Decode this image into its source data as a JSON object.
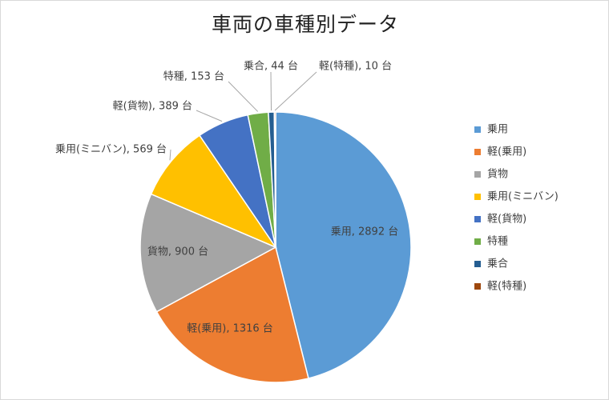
{
  "chart_data": {
    "type": "pie",
    "title": "車両の車種別データ",
    "unit": "台",
    "categories": [
      "乗用",
      "軽(乗用)",
      "貨物",
      "乗用(ミニバン)",
      "軽(貨物)",
      "特種",
      "乗合",
      "軽(特種)"
    ],
    "values": [
      2892,
      1316,
      900,
      569,
      389,
      153,
      44,
      10
    ],
    "colors": [
      "#5B9BD5",
      "#ED7D31",
      "#A5A5A5",
      "#FFC000",
      "#4472C4",
      "#70AD47",
      "#255E91",
      "#9E480E"
    ],
    "data_labels": [
      "乗用, 2892 台",
      "軽(乗用), 1316 台",
      "貨物, 900 台",
      "乗用(ミニバン), 569 台",
      "軽(貨物), 389 台",
      "特種, 153 台",
      "乗合, 44 台",
      "軽(特種), 10 台"
    ],
    "legend_position": "right",
    "start_angle": "top, clockwise"
  }
}
